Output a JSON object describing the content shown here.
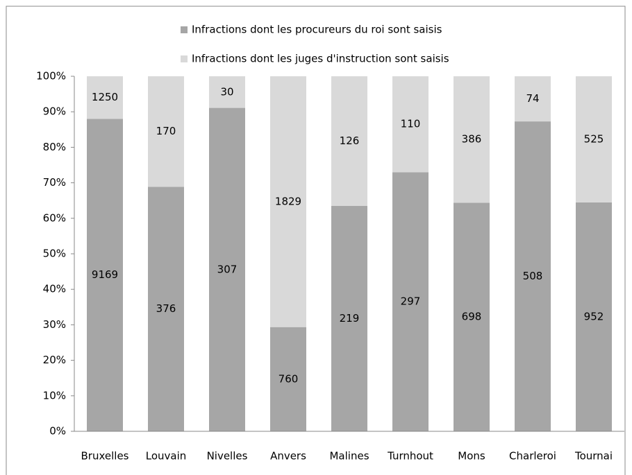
{
  "chart_data": {
    "type": "bar",
    "stacking": "percent",
    "categories": [
      "Bruxelles",
      "Louvain",
      "Nivelles",
      "Anvers",
      "Malines",
      "Turnhout",
      "Mons",
      "Charleroi",
      "Tournai"
    ],
    "series": [
      {
        "name": "Infractions dont les procureurs du roi sont saisis",
        "color": "#a6a6a6",
        "values": [
          9169,
          376,
          307,
          760,
          219,
          297,
          698,
          508,
          952
        ]
      },
      {
        "name": "Infractions dont les juges d'instruction sont saisis",
        "color": "#d9d9d9",
        "values": [
          1250,
          170,
          30,
          1829,
          126,
          110,
          386,
          74,
          525
        ]
      }
    ],
    "ylim": [
      0,
      100
    ],
    "yticks": [
      {
        "value": 0,
        "label": "0%"
      },
      {
        "value": 10,
        "label": "10%"
      },
      {
        "value": 20,
        "label": "20%"
      },
      {
        "value": 30,
        "label": "30%"
      },
      {
        "value": 40,
        "label": "40%"
      },
      {
        "value": 50,
        "label": "50%"
      },
      {
        "value": 60,
        "label": "60%"
      },
      {
        "value": 70,
        "label": "70%"
      },
      {
        "value": 80,
        "label": "80%"
      },
      {
        "value": 90,
        "label": "90%"
      },
      {
        "value": 100,
        "label": "100%"
      }
    ],
    "grid": false,
    "legend": "top"
  }
}
